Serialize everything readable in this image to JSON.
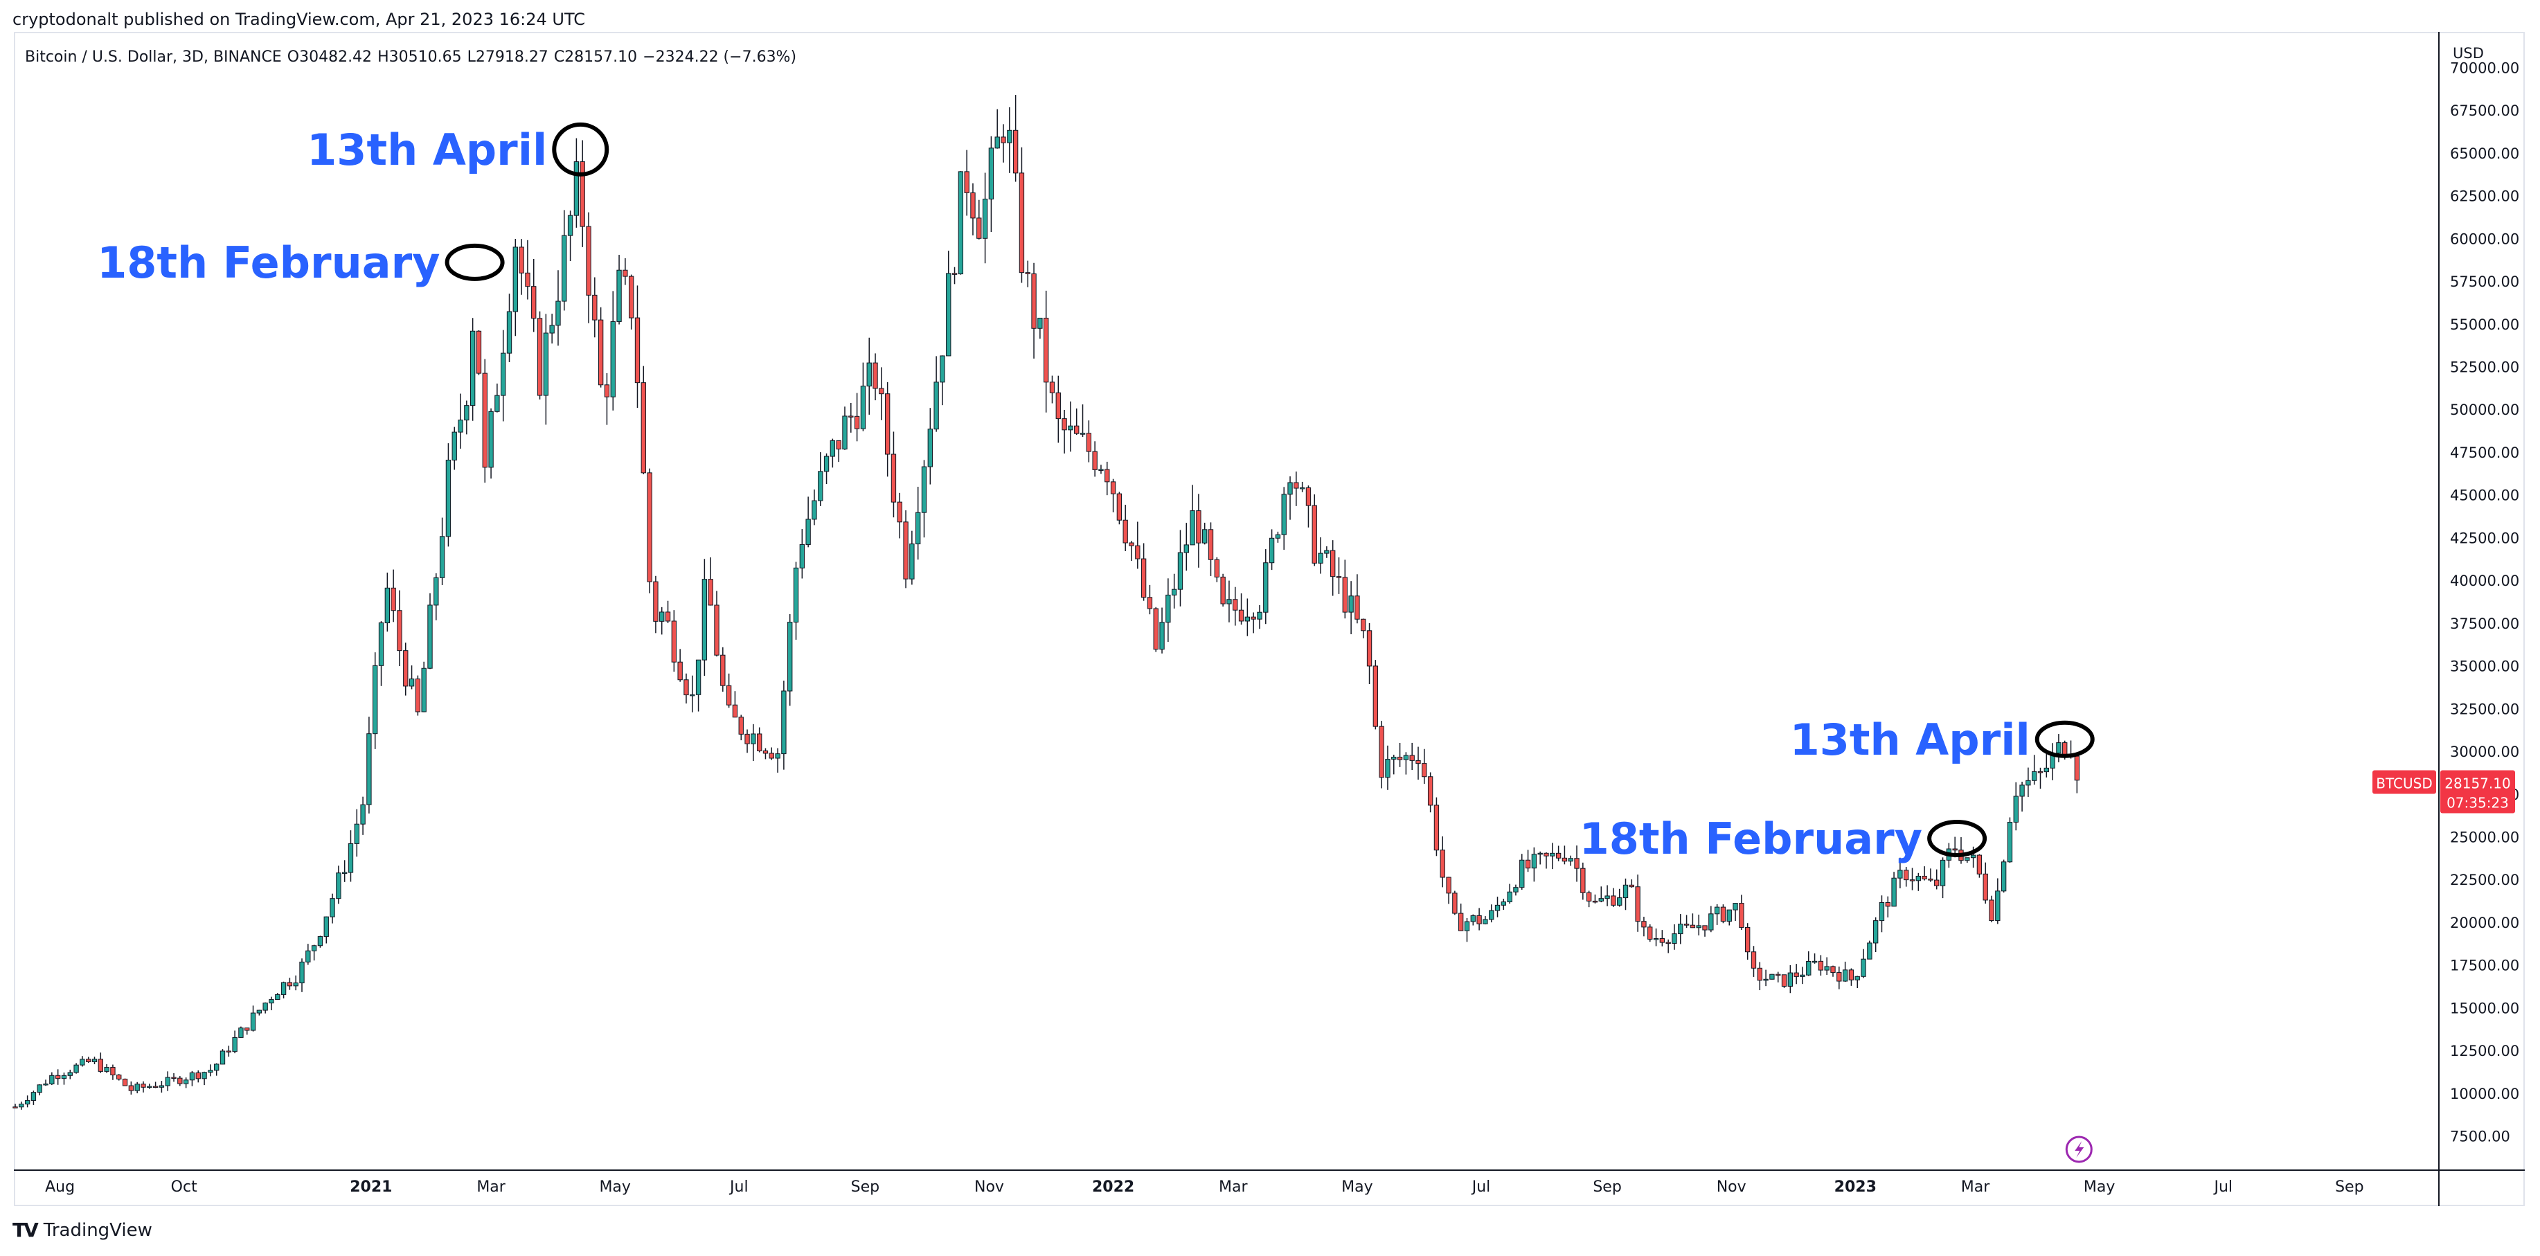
{
  "header": {
    "published": "cryptodonalt published on TradingView.com, Apr 21, 2023 16:24 UTC"
  },
  "legend": {
    "symbol": "Bitcoin / U.S. Dollar, 3D, BINANCE",
    "open": "O30482.42",
    "high": "H30510.65",
    "low": "L27918.27",
    "close": "C28157.10",
    "change": "−2324.22 (−7.63%)"
  },
  "price_tag": {
    "symbol": "BTCUSD",
    "price": "28157.10",
    "countdown": "07:35:23",
    "color": "#f23645"
  },
  "footer": {
    "brand": "TradingView"
  },
  "chart_data": {
    "type": "candlestick",
    "currency_label": "USD",
    "up_color": "#26a69a",
    "down_color": "#ef5350",
    "annotation_color": "#2962ff",
    "ylim": [
      5500,
      72000
    ],
    "y_ticks": [
      7500,
      10000,
      12500,
      15000,
      17500,
      20000,
      22500,
      25000,
      27500,
      30000,
      32500,
      35000,
      37500,
      40000,
      42500,
      45000,
      47500,
      50000,
      52500,
      55000,
      57500,
      60000,
      62500,
      65000,
      67500,
      70000
    ],
    "y_tick_labels": [
      "7500.00",
      "10000.00",
      "12500.00",
      "15000.00",
      "17500.00",
      "20000.00",
      "22500.00",
      "25000.00",
      "27500.00",
      "30000.00",
      "32500.00",
      "35000.00",
      "37500.00",
      "40000.00",
      "42500.00",
      "45000.00",
      "47500.00",
      "50000.00",
      "52500.00",
      "55000.00",
      "57500.00",
      "60000.00",
      "62500.00",
      "65000.00",
      "67500.00",
      "70000.00"
    ],
    "x_ticks": [
      {
        "date": "2020-08-01",
        "label": "Aug",
        "bold": false
      },
      {
        "date": "2020-10-01",
        "label": "Oct",
        "bold": false
      },
      {
        "date": "2021-01-01",
        "label": "2021",
        "bold": true
      },
      {
        "date": "2021-03-01",
        "label": "Mar",
        "bold": false
      },
      {
        "date": "2021-05-01",
        "label": "May",
        "bold": false
      },
      {
        "date": "2021-07-01",
        "label": "Jul",
        "bold": false
      },
      {
        "date": "2021-09-01",
        "label": "Sep",
        "bold": false
      },
      {
        "date": "2021-11-01",
        "label": "Nov",
        "bold": false
      },
      {
        "date": "2022-01-01",
        "label": "2022",
        "bold": true
      },
      {
        "date": "2022-03-01",
        "label": "Mar",
        "bold": false
      },
      {
        "date": "2022-05-01",
        "label": "May",
        "bold": false
      },
      {
        "date": "2022-07-01",
        "label": "Jul",
        "bold": false
      },
      {
        "date": "2022-09-01",
        "label": "Sep",
        "bold": false
      },
      {
        "date": "2022-11-01",
        "label": "Nov",
        "bold": false
      },
      {
        "date": "2023-01-01",
        "label": "2023",
        "bold": true
      },
      {
        "date": "2023-03-01",
        "label": "Mar",
        "bold": false
      },
      {
        "date": "2023-05-01",
        "label": "May",
        "bold": false
      },
      {
        "date": "2023-07-01",
        "label": "Jul",
        "bold": false
      },
      {
        "date": "2023-09-01",
        "label": "Sep",
        "bold": false
      }
    ],
    "x_range": [
      "2020-07-10",
      "2023-10-15"
    ],
    "close_anchors": [
      [
        "2020-07-10",
        9200
      ],
      [
        "2020-07-28",
        11000
      ],
      [
        "2020-08-17",
        11900
      ],
      [
        "2020-09-05",
        10200
      ],
      [
        "2020-09-25",
        10700
      ],
      [
        "2020-10-15",
        11400
      ],
      [
        "2020-10-25",
        13000
      ],
      [
        "2020-11-15",
        16000
      ],
      [
        "2020-11-26",
        17000
      ],
      [
        "2020-12-05",
        19000
      ],
      [
        "2020-12-18",
        23000
      ],
      [
        "2020-12-28",
        27000
      ],
      [
        "2021-01-08",
        40000
      ],
      [
        "2021-01-15",
        36000
      ],
      [
        "2021-01-24",
        32000
      ],
      [
        "2021-02-08",
        46000
      ],
      [
        "2021-02-18",
        52000
      ],
      [
        "2021-02-21",
        57000
      ],
      [
        "2021-02-26",
        46000
      ],
      [
        "2021-03-13",
        60000
      ],
      [
        "2021-03-25",
        52000
      ],
      [
        "2021-04-04",
        58000
      ],
      [
        "2021-04-13",
        63500
      ],
      [
        "2021-04-25",
        50000
      ],
      [
        "2021-05-03",
        57000
      ],
      [
        "2021-05-10",
        56000
      ],
      [
        "2021-05-19",
        38000
      ],
      [
        "2021-05-25",
        38000
      ],
      [
        "2021-06-08",
        33000
      ],
      [
        "2021-06-15",
        40000
      ],
      [
        "2021-06-25",
        32000
      ],
      [
        "2021-07-20",
        30000
      ],
      [
        "2021-07-30",
        42000
      ],
      [
        "2021-08-14",
        47000
      ],
      [
        "2021-08-22",
        49000
      ],
      [
        "2021-09-06",
        52000
      ],
      [
        "2021-09-21",
        41000
      ],
      [
        "2021-10-01",
        48000
      ],
      [
        "2021-10-10",
        55000
      ],
      [
        "2021-10-20",
        64000
      ],
      [
        "2021-10-28",
        61000
      ],
      [
        "2021-11-09",
        67500
      ],
      [
        "2021-11-18",
        58000
      ],
      [
        "2021-11-26",
        54000
      ],
      [
        "2021-12-04",
        49000
      ],
      [
        "2021-12-15",
        48000
      ],
      [
        "2021-12-28",
        47000
      ],
      [
        "2022-01-10",
        42000
      ],
      [
        "2022-01-22",
        36000
      ],
      [
        "2022-02-10",
        44000
      ],
      [
        "2022-02-24",
        38000
      ],
      [
        "2022-03-15",
        39000
      ],
      [
        "2022-03-29",
        47000
      ],
      [
        "2022-04-10",
        42000
      ],
      [
        "2022-04-25",
        39000
      ],
      [
        "2022-05-06",
        36000
      ],
      [
        "2022-05-12",
        29000
      ],
      [
        "2022-06-01",
        30000
      ],
      [
        "2022-06-13",
        22000
      ],
      [
        "2022-06-18",
        20000
      ],
      [
        "2022-07-05",
        20200
      ],
      [
        "2022-07-20",
        23000
      ],
      [
        "2022-08-13",
        24200
      ],
      [
        "2022-08-25",
        21000
      ],
      [
        "2022-09-12",
        22000
      ],
      [
        "2022-09-20",
        19000
      ],
      [
        "2022-10-10",
        19500
      ],
      [
        "2022-11-05",
        21000
      ],
      [
        "2022-11-10",
        17000
      ],
      [
        "2022-11-25",
        16500
      ],
      [
        "2022-12-14",
        17600
      ],
      [
        "2022-12-31",
        16600
      ],
      [
        "2023-01-14",
        20800
      ],
      [
        "2023-01-25",
        23000
      ],
      [
        "2023-02-09",
        22000
      ],
      [
        "2023-02-18",
        24500
      ],
      [
        "2023-03-01",
        23400
      ],
      [
        "2023-03-10",
        20300
      ],
      [
        "2023-03-20",
        27800
      ],
      [
        "2023-04-01",
        28400
      ],
      [
        "2023-04-13",
        30400
      ],
      [
        "2023-04-18",
        30482
      ],
      [
        "2023-04-21",
        28157
      ]
    ],
    "annotations": [
      {
        "text": "13th April",
        "date": "2021-04-14",
        "price": 65200
      },
      {
        "text": "18th February",
        "date": "2021-02-21",
        "price": 58600
      },
      {
        "text": "13th April",
        "date": "2023-04-14",
        "price": 30700
      },
      {
        "text": "18th February",
        "date": "2023-02-20",
        "price": 24900
      }
    ]
  }
}
